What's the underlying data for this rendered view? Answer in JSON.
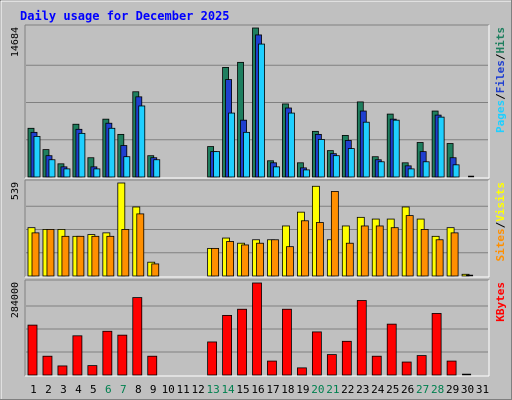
{
  "chart_data": {
    "type": "bar",
    "title": "Daily usage for December 2025",
    "categories": [
      "1",
      "2",
      "3",
      "4",
      "5",
      "6",
      "7",
      "8",
      "9",
      "10",
      "11",
      "12",
      "13",
      "14",
      "15",
      "16",
      "17",
      "18",
      "19",
      "20",
      "21",
      "22",
      "23",
      "24",
      "25",
      "26",
      "27",
      "28",
      "29",
      "30",
      "31"
    ],
    "weekend_days": [
      "6",
      "7",
      "13",
      "14",
      "20",
      "21",
      "27",
      "28"
    ],
    "panels": [
      {
        "id": "hits_files_pages",
        "ymax_label": "14684",
        "ymax": 14684,
        "series": [
          {
            "name": "Hits",
            "color": "#1f7f5f",
            "values": [
              4800,
              2700,
              1300,
              5200,
              1900,
              5700,
              4200,
              8400,
              2100,
              0,
              0,
              0,
              3000,
              10800,
              11300,
              14684,
              1600,
              7200,
              1400,
              4500,
              2600,
              4100,
              7400,
              2000,
              6200,
              1400,
              3400,
              6500,
              3300,
              0,
              0
            ]
          },
          {
            "name": "Files",
            "color": "#1f3fcf",
            "values": [
              4400,
              2100,
              1000,
              4700,
              1000,
              5300,
              3100,
              7900,
              1900,
              0,
              0,
              0,
              2500,
              9600,
              5600,
              14000,
              1400,
              6800,
              900,
              4200,
              2300,
              3600,
              6500,
              1700,
              5700,
              1100,
              2500,
              6100,
              1900,
              0,
              0
            ]
          },
          {
            "name": "Pages",
            "color": "#1fcfff",
            "values": [
              4000,
              1700,
              800,
              4300,
              800,
              4800,
              2000,
              7000,
              1700,
              0,
              0,
              0,
              2500,
              6300,
              4400,
              13100,
              1000,
              6300,
              700,
              3700,
              2100,
              2800,
              5400,
              1500,
              5600,
              800,
              1500,
              5900,
              1200,
              0,
              0
            ]
          }
        ],
        "legend": [
          "Pages",
          "/",
          "Files",
          "/",
          "Hits"
        ]
      },
      {
        "id": "visits_sites",
        "ymax_label": "539",
        "ymax": 539,
        "series": [
          {
            "name": "Visits",
            "color": "#ffff00",
            "values": [
              280,
              270,
              270,
              230,
              240,
              250,
              539,
              400,
              80,
              0,
              0,
              0,
              160,
              220,
              190,
              210,
              210,
              290,
              370,
              520,
              210,
              290,
              340,
              330,
              330,
              400,
              330,
              230,
              280,
              10,
              0
            ]
          },
          {
            "name": "Sites",
            "color": "#ff8f00",
            "values": [
              250,
              270,
              230,
              230,
              230,
              230,
              270,
              360,
              70,
              0,
              0,
              0,
              160,
              200,
              180,
              190,
              210,
              170,
              320,
              310,
              490,
              190,
              290,
              290,
              280,
              350,
              270,
              210,
              250,
              0,
              0
            ]
          }
        ],
        "legend": [
          "Sites",
          "/",
          "Visits"
        ]
      },
      {
        "id": "kbytes",
        "ymax_label": "284000",
        "ymax": 284000,
        "series": [
          {
            "name": "KBytes",
            "color": "#ff0000",
            "values": [
              154000,
              58000,
              28000,
              121000,
              29000,
              135000,
              123000,
              239000,
              58000,
              0,
              0,
              0,
              102000,
              184000,
              203000,
              284000,
              43000,
              203000,
              22000,
              133000,
              63000,
              104000,
              230000,
              58000,
              157000,
              40000,
              60000,
              190000,
              43000,
              0,
              0
            ]
          }
        ],
        "legend": [
          "KBytes"
        ]
      }
    ]
  },
  "colors": {
    "background": "#c0c0c0",
    "frame_light": "#e8e8e8",
    "frame_dark": "#808080",
    "title": "#0000ff",
    "axis_label": "#000000",
    "weekday": "#000000",
    "weekend": "#00804f",
    "legend_slash": "#000000"
  }
}
